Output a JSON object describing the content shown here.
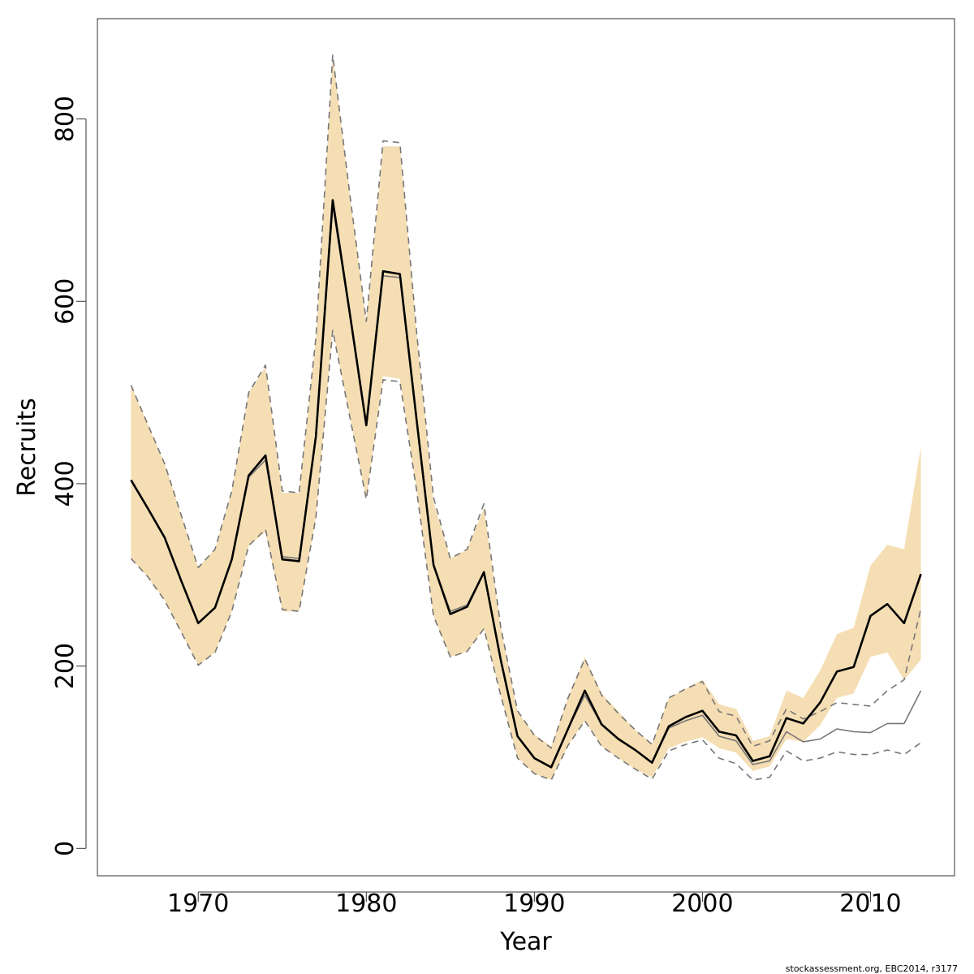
{
  "footer": "stockassessment.org, EBC2014, r3177",
  "chart_data": {
    "type": "line",
    "title": "",
    "xlabel": "Year",
    "ylabel": "Recruits",
    "xlim": [
      1964,
      2015
    ],
    "ylim": [
      -30,
      910
    ],
    "x_ticks": [
      1970,
      1980,
      1990,
      2000,
      2010
    ],
    "x_tick_labels": [
      "1970",
      "1980",
      "1990",
      "2000",
      "2010"
    ],
    "y_ticks": [
      0,
      200,
      400,
      600,
      800
    ],
    "y_tick_labels": [
      "0",
      "200",
      "400",
      "600",
      "800"
    ],
    "grid": false,
    "colors": {
      "band": "#f5deb3",
      "estimate": "#000000",
      "retro": "#777777",
      "retro_ci": "#777777"
    },
    "x": [
      1966,
      1967,
      1968,
      1969,
      1970,
      1971,
      1972,
      1973,
      1974,
      1975,
      1976,
      1977,
      1978,
      1979,
      1980,
      1981,
      1982,
      1983,
      1984,
      1985,
      1986,
      1987,
      1988,
      1989,
      1990,
      1991,
      1992,
      1993,
      1994,
      1995,
      1996,
      1997,
      1998,
      1999,
      2000,
      2001,
      2002,
      2003,
      2004,
      2005,
      2006,
      2007,
      2008,
      2009,
      2010,
      2011,
      2012,
      2013
    ],
    "series": [
      {
        "role": "confidence_band",
        "lower": [
          318,
          298,
          272,
          237,
          201,
          215,
          260,
          332,
          347,
          260,
          260,
          363,
          570,
          475,
          383,
          518,
          515,
          392,
          255,
          210,
          216,
          241,
          168,
          100,
          82,
          75,
          113,
          140,
          112,
          99,
          87,
          78,
          110,
          117,
          122,
          110,
          105,
          85,
          90,
          120,
          117,
          135,
          165,
          170,
          210,
          215,
          185,
          207
        ],
        "upper": [
          508,
          465,
          422,
          365,
          308,
          328,
          392,
          500,
          528,
          390,
          390,
          560,
          870,
          720,
          578,
          770,
          770,
          565,
          380,
          318,
          328,
          373,
          243,
          150,
          125,
          112,
          165,
          210,
          170,
          150,
          130,
          115,
          165,
          175,
          185,
          158,
          153,
          118,
          123,
          173,
          165,
          195,
          235,
          242,
          310,
          333,
          328,
          440
        ]
      },
      {
        "role": "estimate",
        "values": [
          404,
          373,
          341,
          293,
          247,
          264,
          317,
          409,
          431,
          317,
          315,
          452,
          711,
          589,
          464,
          633,
          630,
          469,
          311,
          257,
          265,
          303,
          207,
          123,
          99,
          89,
          131,
          173,
          136,
          120,
          108,
          94,
          134,
          144,
          151,
          128,
          124,
          96,
          101,
          143,
          137,
          160,
          194,
          199,
          255,
          268,
          247,
          301
        ]
      },
      {
        "role": "retro_estimate",
        "values": [
          404,
          373,
          341,
          293,
          247,
          264,
          317,
          407,
          426,
          320,
          318,
          452,
          705,
          587,
          464,
          628,
          626,
          469,
          311,
          260,
          267,
          303,
          207,
          123,
          99,
          89,
          131,
          168,
          136,
          120,
          108,
          94,
          132,
          140,
          146,
          123,
          118,
          92,
          96,
          128,
          117,
          120,
          131,
          128,
          127,
          137,
          137,
          173
        ]
      },
      {
        "role": "retro_lower",
        "values": [
          318,
          298,
          272,
          237,
          201,
          215,
          260,
          332,
          350,
          262,
          260,
          363,
          568,
          475,
          383,
          514,
          512,
          392,
          255,
          210,
          216,
          241,
          168,
          99,
          82,
          75,
          113,
          140,
          112,
          99,
          87,
          76,
          107,
          114,
          119,
          99,
          93,
          75,
          78,
          107,
          96,
          99,
          106,
          103,
          103,
          108,
          103,
          116
        ]
      },
      {
        "role": "retro_upper",
        "values": [
          508,
          465,
          422,
          365,
          308,
          328,
          392,
          500,
          530,
          392,
          390,
          560,
          870,
          720,
          578,
          776,
          774,
          565,
          385,
          318,
          328,
          378,
          243,
          151,
          124,
          110,
          165,
          208,
          168,
          148,
          130,
          114,
          165,
          175,
          183,
          150,
          145,
          112,
          118,
          153,
          142,
          150,
          160,
          158,
          156,
          173,
          185,
          263
        ]
      }
    ]
  }
}
